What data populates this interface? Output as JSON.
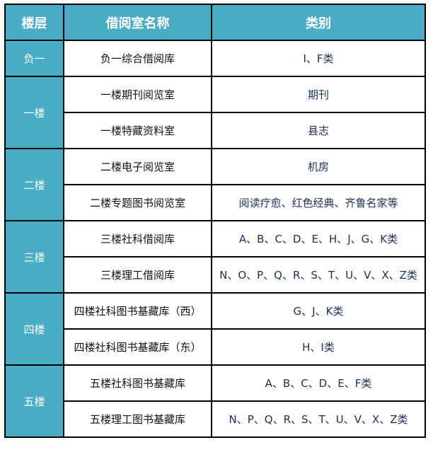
{
  "header": {
    "floor": "楼层",
    "room": "借阅室名称",
    "category": "类别"
  },
  "floors": [
    {
      "name": "负一",
      "rooms": [
        {
          "name": "负一综合借阅库",
          "category": "I、F类"
        }
      ]
    },
    {
      "name": "一楼",
      "rooms": [
        {
          "name": "一楼期刊阅览室",
          "category": "期刊"
        },
        {
          "name": "一楼特藏资料室",
          "category": "县志"
        }
      ]
    },
    {
      "name": "二楼",
      "rooms": [
        {
          "name": "二楼电子阅览室",
          "category": "机房"
        },
        {
          "name": "二楼专题图书阅览室",
          "category": "阅读疗愈、红色经典、齐鲁名家等"
        }
      ]
    },
    {
      "name": "三楼",
      "rooms": [
        {
          "name": "三楼社科借阅库",
          "category": "A、B、C、D、E、H、J、G、K类"
        },
        {
          "name": "三楼理工借阅库",
          "category": "N、O、P、Q、R、S、T、U、V、X、Z类"
        }
      ]
    },
    {
      "name": "四楼",
      "rooms": [
        {
          "name": "四楼社科图书基藏库（西）",
          "category": "G、J、K类"
        },
        {
          "name": "四楼社科图书基藏库（东）",
          "category": "H、I类"
        }
      ]
    },
    {
      "name": "五楼",
      "rooms": [
        {
          "name": "五楼社科图书基藏库",
          "category": "A、B、C、D、E、F类"
        },
        {
          "name": "五楼理工图书基藏库",
          "category": "N、P、Q、R、S、T、U、V、X、Z类"
        }
      ]
    }
  ],
  "colors": {
    "header_bg": "#4bacc6",
    "header_text": "#ffffff"
  }
}
